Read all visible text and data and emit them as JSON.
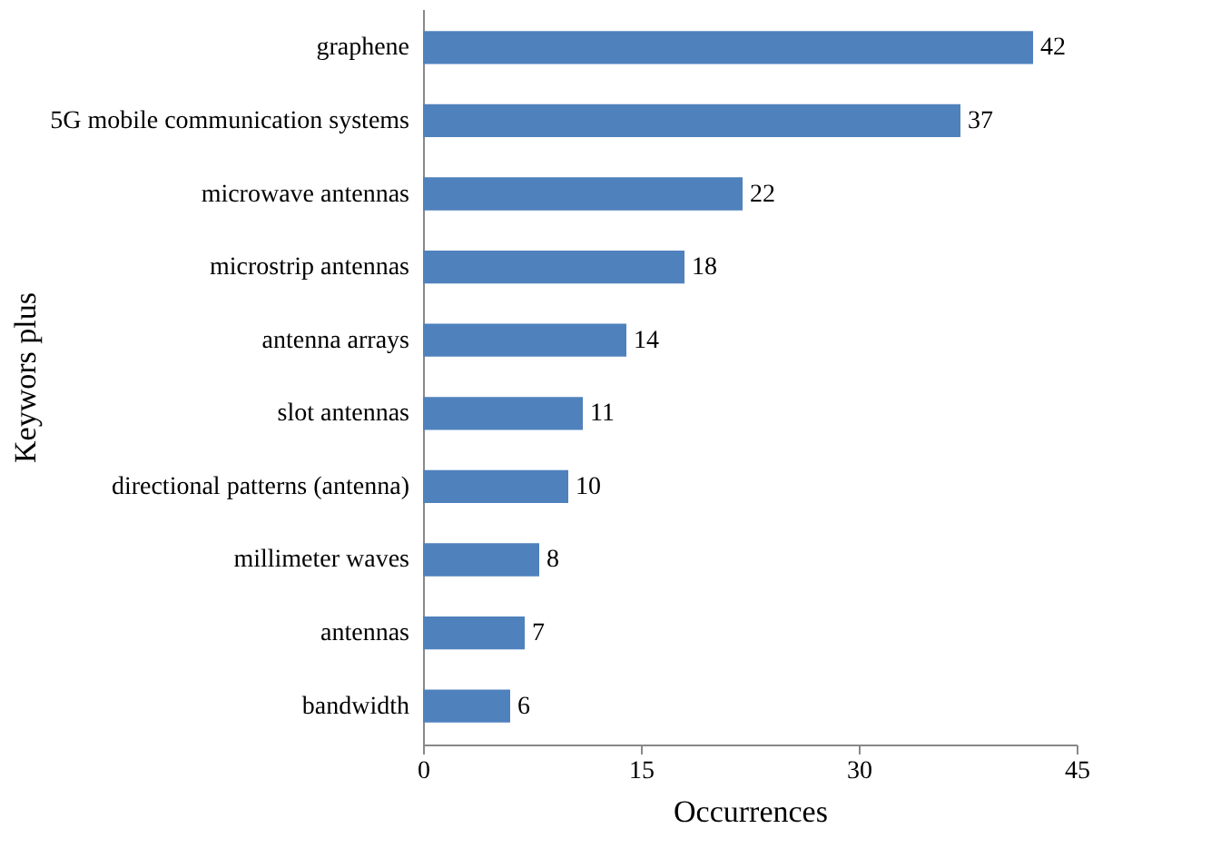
{
  "chart_data": {
    "type": "bar",
    "orientation": "horizontal",
    "xlabel": "Occurrences",
    "ylabel": "Keywors plus",
    "categories": [
      "graphene",
      "5G mobile communication systems",
      "microwave antennas",
      "microstrip antennas",
      "antenna arrays",
      "slot antennas",
      "directional patterns (antenna)",
      "millimeter waves",
      "antennas",
      "bandwidth"
    ],
    "values": [
      42,
      37,
      22,
      18,
      14,
      11,
      10,
      8,
      7,
      6
    ],
    "color": "#4f81bd",
    "xlim": [
      0,
      45
    ],
    "xticks": [
      0,
      15,
      30,
      45
    ],
    "data_labels": true,
    "grid": false
  }
}
